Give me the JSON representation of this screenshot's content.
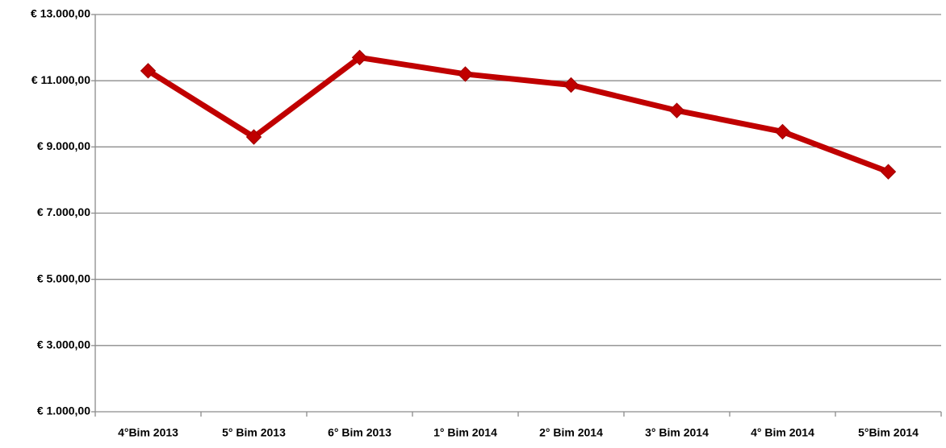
{
  "chart_data": {
    "type": "line",
    "categories": [
      "4°Bim 2013",
      "5° Bim 2013",
      "6° Bim 2013",
      "1° Bim 2014",
      "2° Bim 2014",
      "3° Bim 2014",
      "4° Bim 2014",
      "5°Bim 2014"
    ],
    "series": [
      {
        "color": "#c00000",
        "values": [
          11300,
          9300,
          11700,
          11200,
          10870,
          10100,
          9460,
          8250
        ]
      }
    ],
    "ylim": [
      1000,
      13000
    ],
    "yticks": [
      {
        "value": 1000,
        "label": "€ 1.000,00"
      },
      {
        "value": 3000,
        "label": "€ 3.000,00"
      },
      {
        "value": 5000,
        "label": "€ 5.000,00"
      },
      {
        "value": 7000,
        "label": "€ 7.000,00"
      },
      {
        "value": 9000,
        "label": "€ 9.000,00"
      },
      {
        "value": 11000,
        "label": "€ 11.000,00"
      },
      {
        "value": 13000,
        "label": "€ 13.000,00"
      }
    ],
    "grid": true
  }
}
